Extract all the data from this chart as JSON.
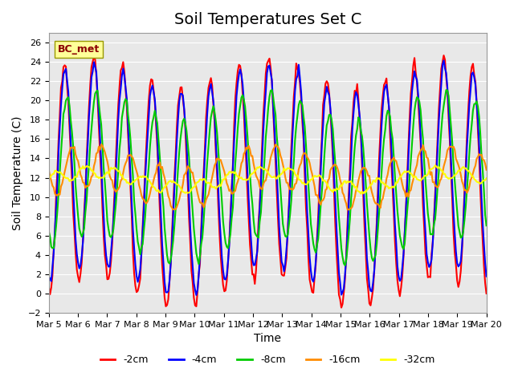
{
  "title": "Soil Temperatures Set C",
  "xlabel": "Time",
  "ylabel": "Soil Temperature (C)",
  "annotation": "BC_met",
  "ylim": [
    -2,
    27
  ],
  "yticks": [
    -2,
    0,
    2,
    4,
    6,
    8,
    10,
    12,
    14,
    16,
    18,
    20,
    22,
    24,
    26
  ],
  "xtick_labels": [
    "Mar 5",
    "Mar 6",
    "Mar 7",
    "Mar 8",
    "Mar 9",
    "Mar 10",
    "Mar 11",
    "Mar 12",
    "Mar 13",
    "Mar 14",
    "Mar 15",
    "Mar 16",
    "Mar 17",
    "Mar 18",
    "Mar 19",
    "Mar 20"
  ],
  "colors": {
    "-2cm": "#ff0000",
    "-4cm": "#0000ff",
    "-8cm": "#00cc00",
    "-16cm": "#ff8c00",
    "-32cm": "#ffff00"
  },
  "line_widths": {
    "-2cm": 1.5,
    "-4cm": 1.5,
    "-8cm": 1.5,
    "-16cm": 1.5,
    "-32cm": 1.5
  },
  "plot_bg_color": "#e8e8e8",
  "title_fontsize": 14,
  "axis_fontsize": 10,
  "tick_fontsize": 8,
  "legend_fontsize": 9
}
